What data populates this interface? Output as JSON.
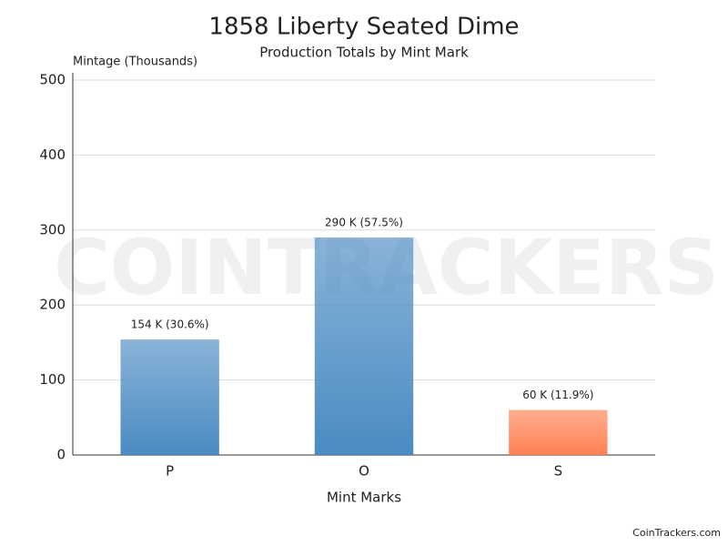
{
  "chart_data": {
    "type": "bar",
    "title": "1858 Liberty Seated Dime",
    "subtitle": "Production Totals by Mint Mark",
    "y_axis_label": "Mintage (Thousands)",
    "x_axis_label": "Mint Marks",
    "categories": [
      "P",
      "O",
      "S"
    ],
    "values": [
      154,
      290,
      60
    ],
    "value_labels": [
      "154 K (30.6%)",
      "290 K (57.5%)",
      "60 K (11.9%)"
    ],
    "colors": [
      "#4a8bc2",
      "#4a8bc2",
      "#ff8152"
    ],
    "ylim": [
      0,
      500
    ],
    "yticks": [
      0,
      100,
      200,
      300,
      400,
      500
    ],
    "grid": true,
    "watermark": "COINTRACKERS",
    "credit": "CoinTrackers.com"
  }
}
